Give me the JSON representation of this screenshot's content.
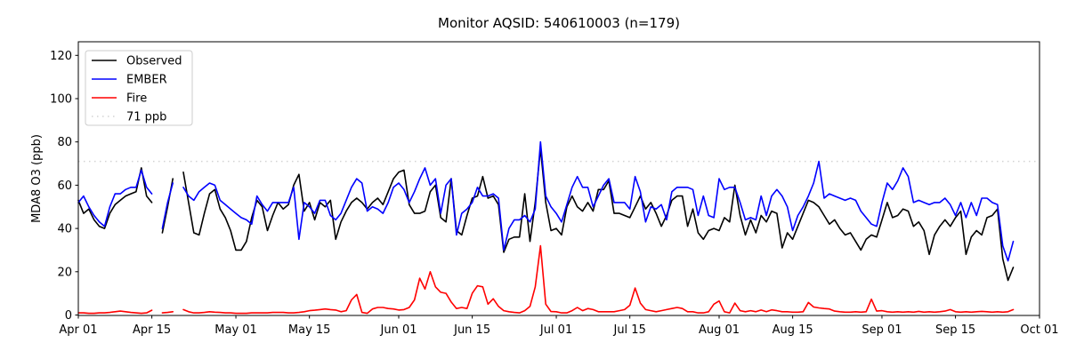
{
  "title": "Monitor AQSID: 540610003 (n=179)",
  "axes": {
    "ylabel": "MDA8 O3 (ppb)",
    "yticks": [
      0,
      20,
      40,
      60,
      80,
      100,
      120
    ],
    "xtick_labels": [
      "Apr 01",
      "Apr 15",
      "May 01",
      "May 15",
      "Jun 01",
      "Jun 15",
      "Jul 01",
      "Jul 15",
      "Aug 01",
      "Aug 15",
      "Sep 01",
      "Sep 15",
      "Oct 01"
    ],
    "xtick_days": [
      0,
      14,
      30,
      44,
      61,
      75,
      91,
      105,
      122,
      136,
      153,
      167,
      183
    ],
    "total_days": 183,
    "ylim": [
      0,
      126
    ]
  },
  "legend": {
    "items": [
      {
        "label": "Observed",
        "color": "#000000",
        "style": "solid"
      },
      {
        "label": "EMBER",
        "color": "#0000ff",
        "style": "solid"
      },
      {
        "label": "Fire",
        "color": "#ff0000",
        "style": "solid"
      },
      {
        "label": "71 ppb",
        "color": "#d3d3d3",
        "style": "dotted"
      }
    ]
  },
  "chart_data": {
    "type": "line",
    "title": "Monitor AQSID: 540610003 (n=179)",
    "xlabel": "",
    "ylabel": "MDA8 O3 (ppb)",
    "x_unit": "days since Apr 01 (daily values, Apr 01 - Sep 26)",
    "x_range_labels": [
      "Apr 01",
      "Oct 01"
    ],
    "grid": false,
    "legend_position": "upper left",
    "reference_line": {
      "label": "71 ppb",
      "value": 71,
      "color": "#d3d3d3",
      "style": "dotted"
    },
    "series": [
      {
        "name": "Observed",
        "color": "#000000",
        "values": [
          53,
          47,
          49,
          44,
          41,
          40,
          47,
          51,
          53,
          55,
          56,
          57,
          68,
          55,
          52,
          null,
          38,
          50,
          63,
          null,
          66,
          52,
          38,
          37,
          47,
          56,
          58,
          49,
          45,
          39,
          30,
          30,
          34,
          45,
          53,
          50,
          39,
          46,
          52,
          49,
          51,
          60,
          65,
          48,
          52,
          44,
          52,
          50,
          53,
          35,
          43,
          48,
          52,
          54,
          52,
          49,
          52,
          54,
          51,
          57,
          63,
          66,
          67,
          51,
          47,
          47,
          48,
          57,
          60,
          45,
          43,
          63,
          39,
          37,
          46,
          54,
          55,
          64,
          54,
          55,
          51,
          29,
          35,
          36,
          36,
          56,
          34,
          52,
          77,
          52,
          39,
          40,
          37,
          50,
          55,
          50,
          48,
          52,
          48,
          58,
          58,
          62,
          47,
          47,
          46,
          45,
          50,
          55,
          49,
          52,
          47,
          41,
          46,
          53,
          55,
          55,
          41,
          49,
          38,
          35,
          39,
          40,
          39,
          45,
          43,
          60,
          46,
          37,
          44,
          38,
          46,
          43,
          48,
          47,
          31,
          38,
          35,
          41,
          47,
          53,
          52,
          50,
          46,
          42,
          44,
          40,
          37,
          38,
          34,
          30,
          35,
          37,
          36,
          44,
          52,
          45,
          46,
          49,
          48,
          41,
          43,
          39,
          28,
          37,
          41,
          44,
          41,
          45,
          48,
          28,
          36,
          39,
          37,
          45,
          46,
          49,
          26,
          16,
          22
        ]
      },
      {
        "name": "EMBER",
        "color": "#0000ff",
        "values": [
          52,
          55,
          50,
          46,
          43,
          41,
          50,
          56,
          56,
          58,
          59,
          59,
          67,
          59,
          56,
          null,
          40,
          52,
          61,
          null,
          59,
          55,
          53,
          57,
          59,
          61,
          60,
          53,
          51,
          49,
          47,
          45,
          44,
          42,
          55,
          51,
          48,
          52,
          52,
          52,
          52,
          59,
          35,
          52,
          50,
          47,
          53,
          53,
          46,
          44,
          47,
          53,
          59,
          63,
          61,
          48,
          50,
          49,
          47,
          52,
          59,
          61,
          58,
          52,
          57,
          63,
          68,
          60,
          63,
          47,
          60,
          63,
          37,
          47,
          49,
          52,
          59,
          55,
          55,
          56,
          54,
          30,
          40,
          44,
          44,
          46,
          43,
          49,
          80,
          55,
          50,
          47,
          43,
          51,
          59,
          64,
          59,
          59,
          50,
          55,
          60,
          63,
          52,
          52,
          52,
          49,
          64,
          57,
          43,
          50,
          49,
          51,
          44,
          57,
          59,
          59,
          59,
          58,
          46,
          55,
          46,
          45,
          63,
          58,
          59,
          59,
          52,
          44,
          45,
          44,
          55,
          46,
          55,
          58,
          55,
          50,
          39,
          46,
          50,
          55,
          61,
          71,
          54,
          56,
          55,
          54,
          53,
          54,
          53,
          48,
          45,
          42,
          41,
          52,
          61,
          58,
          62,
          68,
          64,
          52,
          53,
          52,
          51,
          52,
          52,
          54,
          51,
          46,
          52,
          45,
          52,
          46,
          54,
          54,
          52,
          51,
          32,
          25,
          34
        ]
      },
      {
        "name": "Fire",
        "color": "#ff0000",
        "values": [
          1,
          1,
          0.8,
          0.8,
          1,
          1,
          1.2,
          1.5,
          1.8,
          1.5,
          1.2,
          1,
          0.8,
          1,
          2.2,
          null,
          1,
          1.2,
          1.5,
          null,
          2.5,
          1.5,
          1,
          1,
          1.2,
          1.5,
          1.3,
          1.2,
          1,
          1,
          0.8,
          0.8,
          0.8,
          1,
          1,
          1,
          1,
          1.2,
          1.2,
          1.2,
          1,
          1,
          1.2,
          1.5,
          2,
          2.2,
          2.5,
          2.8,
          2.5,
          2.3,
          1.5,
          2,
          7,
          9.5,
          1.2,
          0.8,
          2.8,
          3.5,
          3.5,
          3,
          2.8,
          2.3,
          2.5,
          3.5,
          7,
          17,
          12,
          20,
          13,
          10.5,
          10,
          6,
          3,
          3.5,
          3,
          10,
          13.5,
          13,
          5,
          7.5,
          4,
          2,
          1.5,
          1.2,
          1,
          2,
          4,
          13,
          32,
          5,
          1.6,
          1.5,
          1,
          1,
          2,
          3.5,
          2,
          3,
          2.5,
          1.5,
          1.5,
          1.5,
          1.5,
          2,
          2.5,
          4.5,
          12.5,
          5.5,
          2.5,
          2,
          1.5,
          2,
          2.5,
          3,
          3.5,
          3,
          1.5,
          1.5,
          1,
          1,
          1.5,
          5,
          6.5,
          1.5,
          1,
          5.5,
          2,
          1.5,
          2,
          1.5,
          2.3,
          1.5,
          2.4,
          2,
          1.5,
          1.5,
          1.3,
          1.3,
          1.5,
          5.8,
          3.7,
          3.3,
          3,
          2.8,
          1.8,
          1.5,
          1.3,
          1.3,
          1.5,
          1.3,
          1.5,
          7.3,
          1.8,
          2,
          1.5,
          1.3,
          1.5,
          1.3,
          1.5,
          1.3,
          1.7,
          1.3,
          1.5,
          1.3,
          1.5,
          1.8,
          2.5,
          1.5,
          1.3,
          1.5,
          1.3,
          1.5,
          1.7,
          1.5,
          1.3,
          1.5,
          1.3,
          1.5,
          2.5
        ]
      }
    ]
  }
}
